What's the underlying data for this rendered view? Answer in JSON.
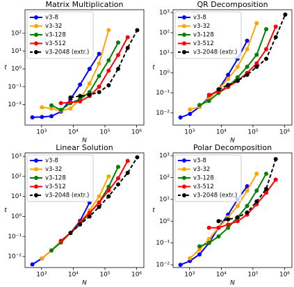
{
  "chart_data": [
    {
      "type": "line",
      "title": "Matrix Multiplication",
      "xlabel": "N",
      "ylabel": "t",
      "xscale": "log",
      "yscale": "log",
      "legend": "upper left",
      "xlim": [
        300,
        1700000
      ],
      "ylim": [
        0.0007,
        2100
      ],
      "xticks": [
        {
          "value": 1000,
          "label": "10³"
        },
        {
          "value": 10000,
          "label": "10⁴"
        },
        {
          "value": 100000,
          "label": "10⁵"
        },
        {
          "value": 1000000,
          "label": "10⁶"
        }
      ],
      "yticks": [
        {
          "value": 0.01,
          "label": "10⁻²"
        },
        {
          "value": 0.1,
          "label": "10⁻¹"
        },
        {
          "value": 1,
          "label": "10⁰"
        },
        {
          "value": 10,
          "label": "10¹"
        },
        {
          "value": 100,
          "label": "10²"
        }
      ],
      "series": [
        {
          "name": "v3-8",
          "color": "#0000ff",
          "x": [
            512,
            1024,
            2048,
            4096,
            8192,
            16384,
            32768,
            65536
          ],
          "values": [
            0.0019,
            0.002,
            0.0022,
            0.004,
            0.02,
            0.13,
            1,
            7
          ]
        },
        {
          "name": "v3-32",
          "color": "#ffa500",
          "x": [
            1024,
            2048,
            4096,
            8192,
            16384,
            32768,
            65536,
            131072
          ],
          "values": [
            0.007,
            0.006,
            0.0045,
            0.006,
            0.02,
            0.15,
            2,
            150
          ]
        },
        {
          "name": "v3-128",
          "color": "#008000",
          "x": [
            2048,
            4096,
            8192,
            16384,
            32768,
            65536,
            131072,
            262144
          ],
          "values": [
            0.009,
            0.005,
            0.012,
            0.02,
            0.05,
            0.4,
            3,
            30
          ]
        },
        {
          "name": "v3-512",
          "color": "#ff0000",
          "x": [
            4096,
            8192,
            16384,
            32768,
            65536,
            131072,
            262144,
            524288
          ],
          "values": [
            0.012,
            0.013,
            0.015,
            0.03,
            0.1,
            0.8,
            6,
            60
          ]
        },
        {
          "name": "v3-2048 (extr.)",
          "color": "#000000",
          "linestyle": "--",
          "x": [
            8192,
            16384,
            32768,
            65536,
            131072,
            262144,
            524288,
            1048576
          ],
          "values": [
            0.025,
            0.03,
            0.035,
            0.05,
            0.12,
            1,
            15,
            150
          ]
        }
      ]
    },
    {
      "type": "line",
      "title": "QR Decomposition",
      "xlabel": "N",
      "ylabel": "t",
      "xscale": "log",
      "yscale": "log",
      "legend": "upper left",
      "xlim": [
        300,
        1700000
      ],
      "ylim": [
        0.0025,
        1400
      ],
      "xticks": [
        {
          "value": 1000,
          "label": "10³"
        },
        {
          "value": 10000,
          "label": "10⁴"
        },
        {
          "value": 100000,
          "label": "10⁵"
        },
        {
          "value": 1000000,
          "label": "10⁶"
        }
      ],
      "yticks": [
        {
          "value": 0.01,
          "label": "10⁻²"
        },
        {
          "value": 0.1,
          "label": "10⁻¹"
        },
        {
          "value": 1,
          "label": "10⁰"
        },
        {
          "value": 10,
          "label": "10¹"
        },
        {
          "value": 100,
          "label": "10²"
        },
        {
          "value": 1000,
          "label": "10³"
        }
      ],
      "series": [
        {
          "name": "v3-8",
          "color": "#0000ff",
          "x": [
            512,
            1024,
            2048,
            4096,
            8192,
            16384,
            32768,
            65536
          ],
          "values": [
            0.006,
            0.009,
            0.02,
            0.06,
            0.15,
            0.8,
            5,
            40
          ]
        },
        {
          "name": "v3-32",
          "color": "#ffa500",
          "x": [
            1024,
            2048,
            4096,
            8192,
            16384,
            32768,
            65536,
            131072
          ],
          "values": [
            0.015,
            0.02,
            0.05,
            0.15,
            0.5,
            2,
            15,
            300
          ]
        },
        {
          "name": "v3-128",
          "color": "#008000",
          "x": [
            2048,
            4096,
            8192,
            16384,
            32768,
            65536,
            131072,
            262144
          ],
          "values": [
            0.025,
            0.04,
            0.1,
            0.2,
            0.6,
            2,
            8,
            150
          ]
        },
        {
          "name": "v3-512",
          "color": "#ff0000",
          "x": [
            4096,
            8192,
            16384,
            32768,
            65536,
            131072,
            262144,
            524288
          ],
          "values": [
            0.08,
            0.12,
            0.2,
            0.4,
            1,
            3,
            15,
            200
          ]
        },
        {
          "name": "v3-2048 (extr.)",
          "color": "#000000",
          "linestyle": "--",
          "x": [
            8192,
            16384,
            32768,
            65536,
            131072,
            262144,
            524288,
            1048576
          ],
          "values": [
            0.15,
            0.25,
            0.4,
            0.8,
            2,
            5,
            60,
            800
          ]
        }
      ]
    },
    {
      "type": "line",
      "title": "Linear Solution",
      "xlabel": "N",
      "ylabel": "t",
      "xscale": "log",
      "yscale": "log",
      "legend": "upper left",
      "xlim": [
        300,
        1700000
      ],
      "ylim": [
        0.0028,
        1500
      ],
      "xticks": [
        {
          "value": 1000,
          "label": "10³"
        },
        {
          "value": 10000,
          "label": "10⁴"
        },
        {
          "value": 100000,
          "label": "10⁵"
        },
        {
          "value": 1000000,
          "label": "10⁶"
        }
      ],
      "yticks": [
        {
          "value": 0.01,
          "label": "10⁻²"
        },
        {
          "value": 0.1,
          "label": "10⁻¹"
        },
        {
          "value": 1,
          "label": "10⁰"
        },
        {
          "value": 10,
          "label": "10¹"
        },
        {
          "value": 100,
          "label": "10²"
        },
        {
          "value": 1000,
          "label": "10³"
        }
      ],
      "series": [
        {
          "name": "v3-8",
          "color": "#0000ff",
          "x": [
            512,
            1024,
            2048,
            4096,
            8192,
            16384,
            32768
          ],
          "values": [
            0.004,
            0.008,
            0.02,
            0.06,
            0.15,
            0.6,
            5
          ]
        },
        {
          "name": "v3-32",
          "color": "#ffa500",
          "x": [
            1024,
            2048,
            4096,
            8192,
            16384,
            32768,
            65536,
            131072
          ],
          "values": [
            0.008,
            0.02,
            0.06,
            0.15,
            0.5,
            2,
            10,
            100
          ]
        },
        {
          "name": "v3-128",
          "color": "#008000",
          "x": [
            2048,
            4096,
            8192,
            16384,
            32768,
            65536,
            131072,
            262144
          ],
          "values": [
            0.02,
            0.05,
            0.15,
            0.4,
            1.5,
            5,
            30,
            300
          ]
        },
        {
          "name": "v3-512",
          "color": "#ff0000",
          "x": [
            4096,
            8192,
            16384,
            32768,
            65536,
            131072,
            262144,
            524288
          ],
          "values": [
            0.06,
            0.15,
            0.5,
            1.5,
            5,
            20,
            80,
            600
          ]
        },
        {
          "name": "v3-2048 (extr.)",
          "color": "#000000",
          "linestyle": "--",
          "x": [
            8192,
            16384,
            32768,
            65536,
            131072,
            262144,
            524288,
            1048576
          ],
          "values": [
            0.15,
            0.4,
            1,
            3,
            10,
            40,
            150,
            900
          ]
        }
      ]
    },
    {
      "type": "line",
      "title": "Polar Decomposition",
      "xlabel": "N",
      "ylabel": "t",
      "xscale": "log",
      "yscale": "log",
      "legend": "upper left",
      "xlim": [
        300,
        1700000
      ],
      "ylim": [
        0.0075,
        1350
      ],
      "xticks": [
        {
          "value": 1000,
          "label": "10³"
        },
        {
          "value": 10000,
          "label": "10⁴"
        },
        {
          "value": 100000,
          "label": "10⁵"
        },
        {
          "value": 1000000,
          "label": "10⁶"
        }
      ],
      "yticks": [
        {
          "value": 0.01,
          "label": "10⁻²"
        },
        {
          "value": 0.1,
          "label": "10⁻¹"
        },
        {
          "value": 1,
          "label": "10⁰"
        },
        {
          "value": 10,
          "label": "10¹"
        },
        {
          "value": 100,
          "label": "10²"
        },
        {
          "value": 1000,
          "label": "10³"
        }
      ],
      "series": [
        {
          "name": "v3-8",
          "color": "#0000ff",
          "x": [
            512,
            1024,
            2048,
            4096,
            8192,
            16384,
            32768,
            65536
          ],
          "values": [
            0.01,
            0.015,
            0.03,
            0.1,
            0.5,
            2,
            10,
            40
          ]
        },
        {
          "name": "v3-32",
          "color": "#ffa500",
          "x": [
            1024,
            2048,
            4096,
            8192,
            16384,
            32768,
            65536,
            131072
          ],
          "values": [
            0.02,
            0.05,
            0.15,
            0.5,
            1.5,
            5,
            25,
            150
          ]
        },
        {
          "name": "v3-128",
          "color": "#008000",
          "x": [
            2048,
            4096,
            8192,
            16384,
            32768,
            65536,
            131072,
            262144
          ],
          "values": [
            0.07,
            0.1,
            0.2,
            0.5,
            1.5,
            5,
            25,
            150
          ]
        },
        {
          "name": "v3-512",
          "color": "#ff0000",
          "x": [
            4096,
            8192,
            16384,
            32768,
            65536,
            131072,
            262144,
            524288
          ],
          "values": [
            0.5,
            0.5,
            0.7,
            1,
            2,
            6,
            20,
            80
          ]
        },
        {
          "name": "v3-2048 (extr.)",
          "color": "#000000",
          "linestyle": "--",
          "x": [
            8192,
            16384,
            32768,
            65536,
            131072,
            262144,
            524288
          ],
          "values": [
            1,
            1.2,
            1.5,
            2.5,
            8,
            30,
            700
          ]
        }
      ]
    }
  ]
}
